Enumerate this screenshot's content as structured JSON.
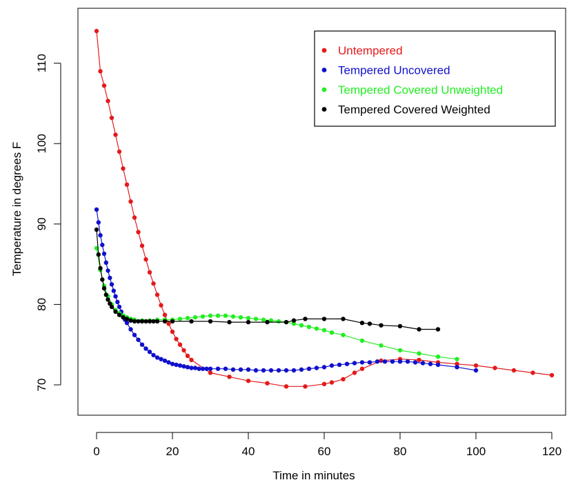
{
  "chart_data": {
    "type": "line",
    "title": "",
    "xlabel": "Time in minutes",
    "ylabel": "Temperature in degrees F",
    "xlim": [
      -5,
      125
    ],
    "ylim": [
      66,
      116
    ],
    "xticks": [
      0,
      20,
      40,
      60,
      80,
      100,
      120
    ],
    "yticks": [
      70,
      80,
      90,
      100,
      110
    ],
    "grid": false,
    "legend_position": "top-right",
    "series": [
      {
        "name": "Untempered",
        "color": "#e31a1c",
        "x": [
          0,
          1,
          2,
          3,
          4,
          5,
          6,
          7,
          8,
          9,
          10,
          11,
          12,
          13,
          14,
          15,
          16,
          17,
          18,
          19,
          20,
          21,
          22,
          23,
          24,
          25,
          30,
          35,
          40,
          45,
          50,
          55,
          60,
          62,
          65,
          68,
          70,
          75,
          80,
          85,
          90,
          95,
          100,
          105,
          110,
          115,
          120
        ],
        "y": [
          114,
          109,
          107.2,
          105.3,
          103.2,
          101.1,
          99,
          96.9,
          94.9,
          92.8,
          90.8,
          89,
          87.3,
          85.6,
          84,
          82.6,
          81.2,
          79.9,
          78.7,
          77.6,
          76.6,
          75.7,
          75,
          74.3,
          73.6,
          73.1,
          71.5,
          71,
          70.5,
          70.2,
          69.8,
          69.8,
          70.1,
          70.3,
          70.7,
          71.5,
          72,
          73,
          73.2,
          73.1,
          72.8,
          72.6,
          72.4,
          72.1,
          71.8,
          71.5,
          71.2
        ]
      },
      {
        "name": "Tempered Uncovered",
        "color": "#1010cc",
        "x": [
          0,
          0.5,
          1,
          1.5,
          2,
          2.5,
          3,
          3.5,
          4,
          4.5,
          5,
          5.5,
          6,
          6.5,
          7,
          7.5,
          8,
          9,
          10,
          11,
          12,
          13,
          14,
          15,
          16,
          17,
          18,
          19,
          20,
          21,
          22,
          23,
          24,
          25,
          26,
          27,
          28,
          29,
          30,
          32,
          34,
          36,
          38,
          40,
          42,
          44,
          46,
          48,
          50,
          52,
          54,
          56,
          58,
          60,
          62,
          64,
          66,
          68,
          70,
          72,
          74,
          76,
          78,
          80,
          82,
          84,
          86,
          88,
          90,
          95,
          100
        ],
        "y": [
          91.8,
          90.2,
          88.6,
          87.4,
          86.3,
          85.2,
          84.2,
          83.3,
          82.5,
          81.7,
          81,
          80.3,
          79.7,
          79.1,
          78.6,
          78.1,
          77.7,
          76.9,
          76.2,
          75.6,
          75,
          74.5,
          74.1,
          73.7,
          73.4,
          73.2,
          73,
          72.8,
          72.6,
          72.5,
          72.4,
          72.3,
          72.2,
          72.1,
          72.1,
          72,
          72,
          72,
          72,
          72,
          72,
          71.9,
          71.9,
          71.9,
          71.8,
          71.8,
          71.8,
          71.8,
          71.8,
          71.8,
          71.9,
          72,
          72.1,
          72.2,
          72.4,
          72.5,
          72.6,
          72.7,
          72.8,
          72.8,
          72.9,
          72.9,
          72.9,
          72.9,
          72.9,
          72.8,
          72.7,
          72.6,
          72.5,
          72.2,
          71.8
        ]
      },
      {
        "name": "Tempered Covered Unweighted",
        "color": "#22ee22",
        "x": [
          0,
          1,
          2,
          3,
          4,
          5,
          6,
          7,
          8,
          9,
          10,
          12,
          14,
          16,
          18,
          20,
          22,
          24,
          26,
          28,
          30,
          32,
          34,
          36,
          38,
          40,
          42,
          44,
          46,
          48,
          50,
          52,
          54,
          56,
          58,
          60,
          62,
          65,
          70,
          75,
          80,
          85,
          90,
          95
        ],
        "y": [
          87,
          84.3,
          82.3,
          81,
          80,
          79.3,
          78.9,
          78.6,
          78.4,
          78.2,
          78.1,
          78,
          78,
          78.1,
          78.1,
          78.1,
          78.2,
          78.3,
          78.4,
          78.5,
          78.6,
          78.6,
          78.6,
          78.5,
          78.4,
          78.3,
          78.2,
          78.1,
          78,
          77.9,
          77.8,
          77.6,
          77.4,
          77.2,
          77,
          76.8,
          76.5,
          76.2,
          75.5,
          74.9,
          74.3,
          73.9,
          73.5,
          73.2
        ]
      },
      {
        "name": "Tempered Covered Weighted",
        "color": "#000000",
        "x": [
          0,
          0.5,
          1,
          1.5,
          2,
          2.5,
          3,
          3.5,
          4,
          5,
          6,
          7,
          8,
          9,
          10,
          11,
          12,
          13,
          14,
          15,
          16,
          18,
          20,
          25,
          30,
          35,
          40,
          45,
          50,
          52,
          55,
          60,
          65,
          70,
          72,
          75,
          80,
          85,
          90
        ],
        "y": [
          89.3,
          86.2,
          84.5,
          83.1,
          82,
          81.2,
          80.6,
          80.1,
          79.7,
          79.1,
          78.7,
          78.4,
          78.2,
          78,
          77.9,
          77.9,
          77.9,
          77.9,
          77.9,
          77.9,
          77.9,
          77.9,
          77.9,
          77.9,
          77.9,
          77.8,
          77.8,
          77.8,
          77.8,
          78,
          78.2,
          78.2,
          78.2,
          77.7,
          77.6,
          77.4,
          77.3,
          76.9,
          76.9
        ]
      }
    ]
  }
}
